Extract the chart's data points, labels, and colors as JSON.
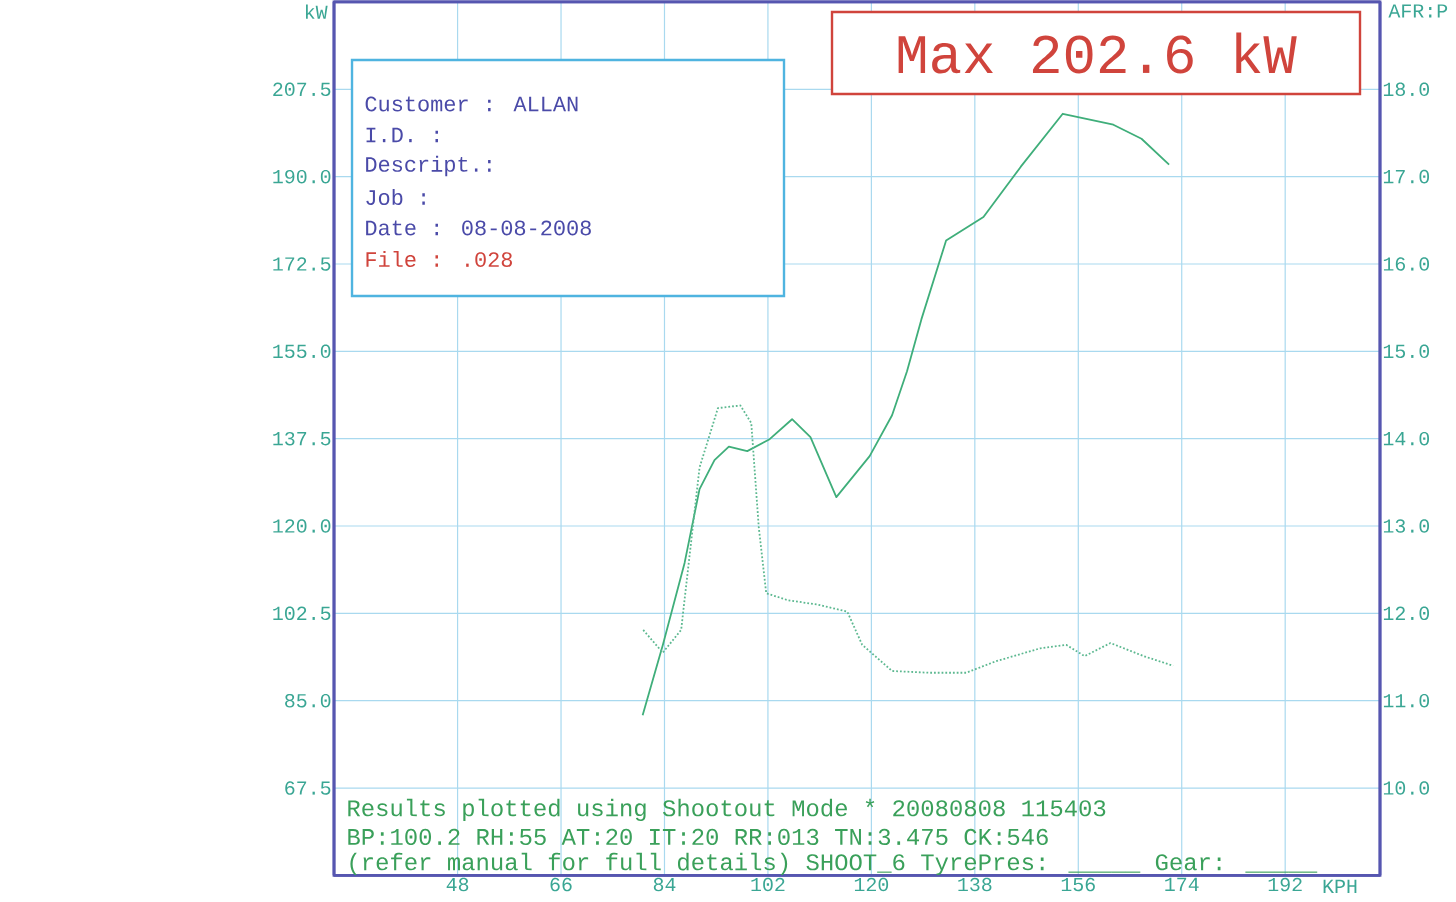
{
  "chart_data": {
    "type": "line",
    "xlabel": "KPH",
    "ylabel": "kW",
    "y2label": "AFR:P",
    "xlim": [
      26.5,
      208.5
    ],
    "xticks": [
      48,
      66,
      84,
      102,
      120,
      138,
      156,
      174,
      192
    ],
    "ylim": [
      50,
      225
    ],
    "yticks": [
      {
        "value": 67.5,
        "label": "67.5"
      },
      {
        "value": 85,
        "label": "85.0"
      },
      {
        "value": 102.5,
        "label": "102.5"
      },
      {
        "value": 120,
        "label": "120.0"
      },
      {
        "value": 137.5,
        "label": "137.5"
      },
      {
        "value": 155,
        "label": "155.0"
      },
      {
        "value": 172.5,
        "label": "172.5"
      },
      {
        "value": 190,
        "label": "190.0"
      },
      207.5
    ],
    "y2lim": [
      9.0,
      19.0
    ],
    "y2ticks": [
      {
        "value": 10,
        "label": "10.0"
      },
      {
        "value": 11,
        "label": "11.0"
      },
      {
        "value": 12,
        "label": "12.0"
      },
      {
        "value": 13,
        "label": "13.0"
      },
      {
        "value": 14,
        "label": "14.0"
      },
      {
        "value": 15,
        "label": "15.0"
      },
      {
        "value": 16,
        "label": "16.0"
      },
      {
        "value": 17,
        "label": "17.0"
      },
      {
        "value": 18,
        "label": "18.0"
      }
    ],
    "grid": true,
    "series": [
      {
        "color": "#3fae7a",
        "line_style": "solid",
        "x": [
          80.2,
          83.7,
          87.5,
          90.1,
          92.7,
          95.2,
          98.4,
          102.3,
          106.2,
          109.4,
          113.9,
          119.7,
          123.6,
          126.2,
          128.7,
          133.0,
          139.5,
          146.0,
          153.3,
          162.1,
          167.0,
          171.8
        ],
        "values": [
          82.1,
          96.1,
          112.6,
          127.4,
          133.2,
          135.9,
          135.0,
          137.4,
          141.4,
          137.8,
          125.8,
          134.0,
          142.2,
          151.0,
          161.4,
          177.2,
          181.9,
          192.0,
          202.6,
          200.4,
          197.6,
          192.4
        ]
      },
      {
        "color": "#5cb890",
        "line_style": "dotted",
        "axis": "y2",
        "x": [
          80.3,
          83.7,
          86.9,
          90.1,
          93.3,
          97.2,
          99.1,
          100.4,
          101.7,
          105.5,
          110.7,
          115.8,
          118.4,
          123.6,
          130.0,
          136.5,
          141.6,
          149.4,
          153.9,
          157.1,
          161.6,
          167.4,
          172.5
        ],
        "values": [
          11.81,
          11.55,
          11.81,
          13.67,
          14.35,
          14.38,
          14.18,
          12.99,
          12.23,
          12.15,
          12.1,
          12.02,
          11.64,
          11.34,
          11.32,
          11.32,
          11.45,
          11.6,
          11.64,
          11.51,
          11.66,
          11.51,
          11.4
        ]
      }
    ],
    "annotations": [
      "Max 202.6 kW",
      "Customer : ALLAN",
      "I.D.     :",
      "Descript.:",
      "Job      :",
      "Date     : 08-08-2008",
      "File     : .028",
      "Results plotted using Shootout Mode * 20080808 115403",
      "BP:100.2 RH:55 AT:20 IT:20  RR:013 TN:3.475 CK:546",
      "(refer manual for full details) SHOOT_6  TyrePres: _____  Gear: _____"
    ]
  }
}
